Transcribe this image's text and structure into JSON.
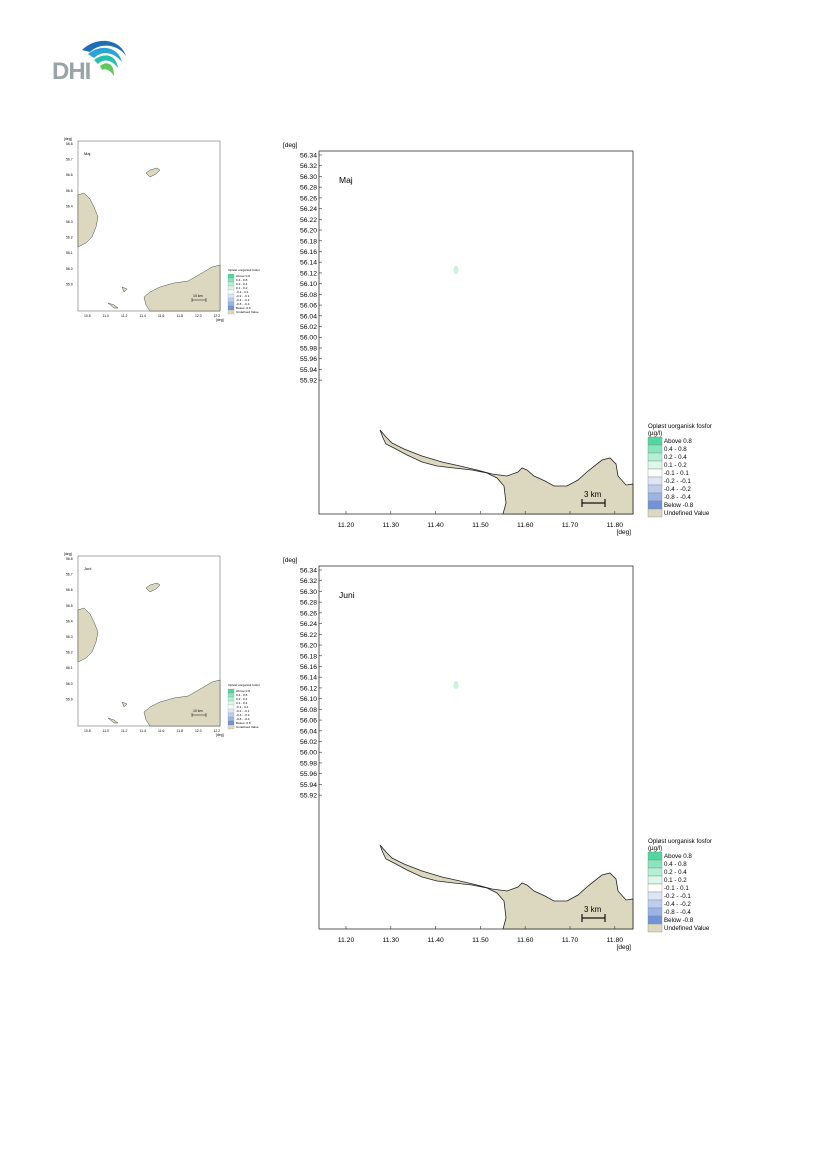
{
  "logo": {
    "text": "DHI"
  },
  "unit_deg": "[deg]",
  "scale_label": "3 km",
  "small_scale_label": "10 km",
  "lat_ticks": [
    "56.34",
    "56.32",
    "56.30",
    "56.28",
    "56.26",
    "56.24",
    "56.22",
    "56.20",
    "56.18",
    "56.16",
    "56.14",
    "56.12",
    "56.10",
    "56.08",
    "56.06",
    "56.04",
    "56.02",
    "56.00",
    "55.98",
    "55.96",
    "55.94",
    "55.92"
  ],
  "lon_ticks": [
    "11.20",
    "11.30",
    "11.40",
    "11.50",
    "11.60",
    "11.70",
    "11.80"
  ],
  "small_lat_ticks": [
    "56.8",
    "56.7",
    "56.6",
    "56.5",
    "56.4",
    "56.3",
    "56.2",
    "56.1",
    "56.0",
    "55.9"
  ],
  "small_lon_ticks": [
    "10.8",
    "11.0",
    "11.2",
    "11.4",
    "11.6",
    "11.8",
    "12.0",
    "12.2"
  ],
  "legend": {
    "title": "Opløst uorganisk fosfor",
    "unit": "(µg/l)",
    "items": [
      {
        "label": "Above  0.8",
        "color": "#4fd8a0"
      },
      {
        "label": "0.4 -  0.8",
        "color": "#86e6bc"
      },
      {
        "label": "0.2 -  0.4",
        "color": "#b4f0d4"
      },
      {
        "label": "0.1 -  0.2",
        "color": "#dcf8ea"
      },
      {
        "label": "-0.1 -  0.1",
        "color": "#ffffff"
      },
      {
        "label": "-0.2 - -0.1",
        "color": "#dde6f6"
      },
      {
        "label": "-0.4 - -0.2",
        "color": "#bccdee"
      },
      {
        "label": "-0.8 - -0.4",
        "color": "#9ab4e6"
      },
      {
        "label": "Below -0.8",
        "color": "#6f94d8"
      },
      {
        "label": "Undefined Value",
        "color": "#dcd8c0"
      }
    ]
  },
  "panels": [
    {
      "month": "Maj"
    },
    {
      "month": "Juni"
    }
  ],
  "colors": {
    "land": "#dcd8c0",
    "coast": "#222222",
    "frame": "#333333",
    "anomaly": "#c8f2dc"
  }
}
